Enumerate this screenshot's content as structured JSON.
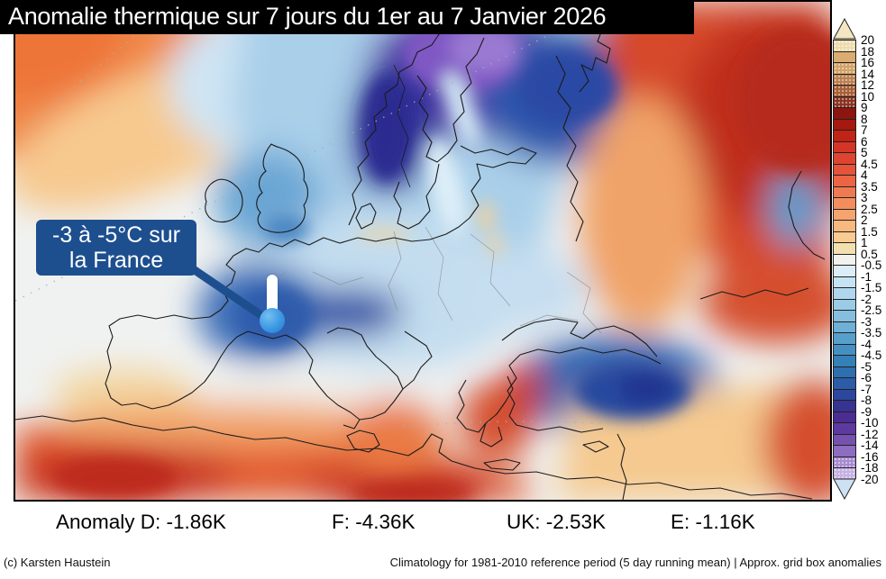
{
  "title": "Anomalie thermique sur 7 jours du 1er au 7 Janvier 2026",
  "annotation": {
    "line1": "-3 à -5°C sur",
    "line2": "la France",
    "box_color": "#1d4f8f"
  },
  "colorbar": {
    "labels": [
      "20",
      "18",
      "16",
      "14",
      "12",
      "10",
      "9",
      "8",
      "7",
      "6",
      "5",
      "4.5",
      "4",
      "3.5",
      "3",
      "2.5",
      "2",
      "1.5",
      "1",
      "0.5",
      "-0.5",
      "-1",
      "-1.5",
      "-2",
      "-2.5",
      "-3",
      "-3.5",
      "-4",
      "-4.5",
      "-5",
      "-6",
      "-7",
      "-8",
      "-9",
      "-10",
      "-12",
      "-14",
      "-16",
      "-18",
      "-20"
    ],
    "cells": [
      {
        "color": "#eedbae",
        "speckle": true
      },
      {
        "color": "#d9ad72",
        "speckle": false
      },
      {
        "color": "#d2a367",
        "speckle": true
      },
      {
        "color": "#bc8051",
        "speckle": true
      },
      {
        "color": "#a66038",
        "speckle": true
      },
      {
        "color": "#8c3423",
        "speckle": true
      },
      {
        "color": "#8c150f",
        "speckle": false
      },
      {
        "color": "#a6190f",
        "speckle": false
      },
      {
        "color": "#c12317",
        "speckle": false
      },
      {
        "color": "#d53526",
        "speckle": false
      },
      {
        "color": "#dd4530",
        "speckle": false
      },
      {
        "color": "#e5533a",
        "speckle": false
      },
      {
        "color": "#eb6545",
        "speckle": false
      },
      {
        "color": "#ef7950",
        "speckle": false
      },
      {
        "color": "#f28e5e",
        "speckle": false
      },
      {
        "color": "#f5a46f",
        "speckle": false
      },
      {
        "color": "#f8b87e",
        "speckle": false
      },
      {
        "color": "#facb90",
        "speckle": false
      },
      {
        "color": "#f2e0ae",
        "speckle": false
      },
      {
        "color": "#f2f1ee",
        "speckle": false
      },
      {
        "color": "#dcedf8",
        "speckle": false
      },
      {
        "color": "#c6e3f3",
        "speckle": false
      },
      {
        "color": "#b0d7ed",
        "speckle": false
      },
      {
        "color": "#9bcbe6",
        "speckle": false
      },
      {
        "color": "#85bede",
        "speckle": false
      },
      {
        "color": "#6fb0d6",
        "speckle": false
      },
      {
        "color": "#58a0cc",
        "speckle": false
      },
      {
        "color": "#4590c2",
        "speckle": false
      },
      {
        "color": "#3580b7",
        "speckle": false
      },
      {
        "color": "#2d6fb0",
        "speckle": false
      },
      {
        "color": "#2b5ca8",
        "speckle": false
      },
      {
        "color": "#2d479d",
        "speckle": false
      },
      {
        "color": "#373393",
        "speckle": false
      },
      {
        "color": "#4c2d92",
        "speckle": false
      },
      {
        "color": "#5e3aa0",
        "speckle": false
      },
      {
        "color": "#7551b0",
        "speckle": false
      },
      {
        "color": "#8e6cc1",
        "speckle": false
      },
      {
        "color": "#a98bd2",
        "speckle": true
      },
      {
        "color": "#c6b1e4",
        "speckle": true
      }
    ],
    "top_arrow_color": "#f4e6c0",
    "bottom_arrow_color": "#cde1f2"
  },
  "stats": {
    "items": [
      {
        "label": "Anomaly D:",
        "value": "-1.86K"
      },
      {
        "label": "F:",
        "value": "-4.36K"
      },
      {
        "label": "UK:",
        "value": "-2.53K"
      },
      {
        "label": "E:",
        "value": "-1.16K"
      }
    ]
  },
  "footer": {
    "credit": "(c) Karsten Haustein",
    "note": "Climatology for 1981-2010 reference period (5 day running mean) | Approx. grid box anomalies"
  }
}
